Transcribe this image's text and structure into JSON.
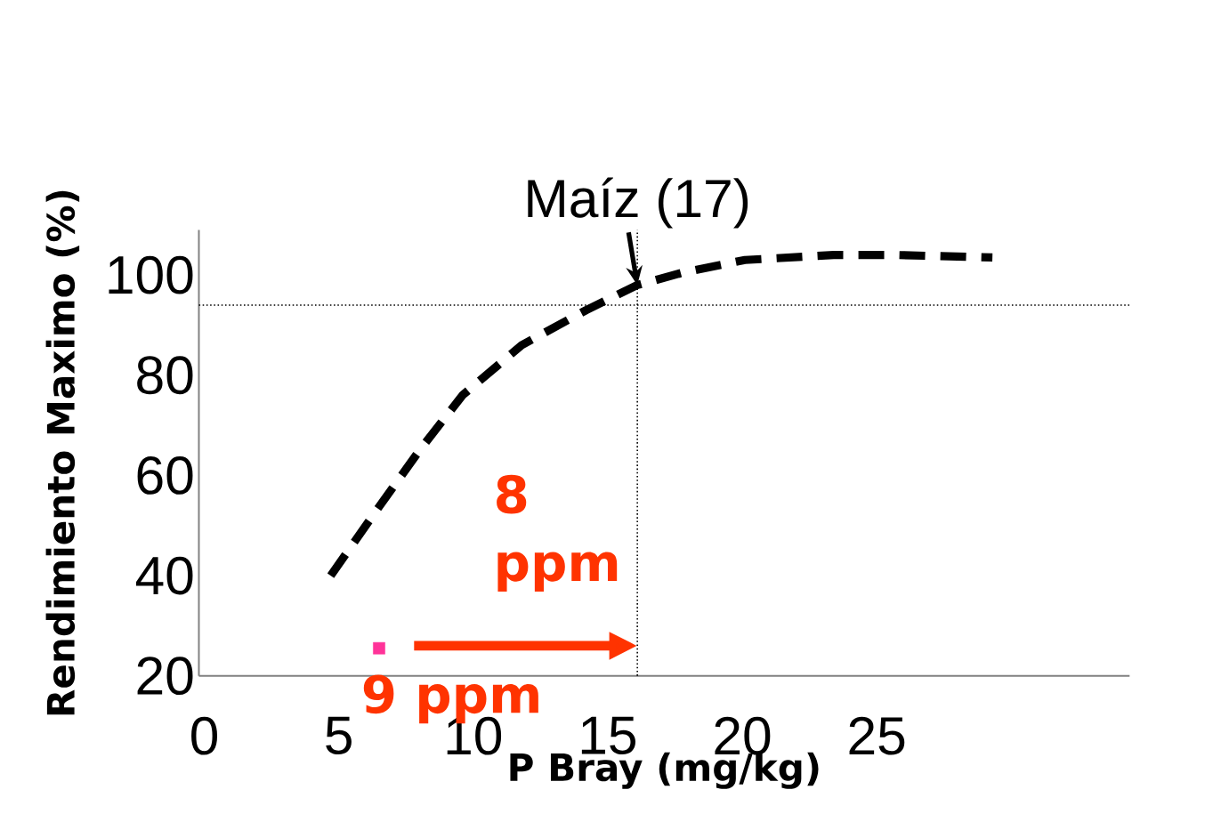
{
  "chart_data": {
    "type": "line",
    "xlabel": "P Bray (mg/kg)",
    "ylabel": "Rendimiento Maximo (%)",
    "xlim": [
      -0.2,
      34.4
    ],
    "ylim": [
      20,
      109
    ],
    "xticks": [
      0,
      5,
      10,
      15,
      20,
      25
    ],
    "yticks": [
      20,
      40,
      60,
      80,
      100
    ],
    "series": [
      {
        "color": "#000000",
        "line_style": "dashed",
        "marker": "none",
        "x": [
          4.7,
          6.4,
          8.0,
          9.6,
          11.8,
          14.2,
          16.1,
          17.8,
          20.1,
          23.4,
          25.7,
          29.3
        ],
        "values": [
          40,
          53,
          65,
          76,
          86,
          93,
          98,
          100.5,
          103,
          104,
          104,
          103.5
        ]
      },
      {
        "type": "scatter",
        "color": "#ff3399",
        "marker": "square",
        "x": [
          6.5
        ],
        "values": [
          25.5
        ]
      }
    ],
    "ref_lines": [
      {
        "axis": "y",
        "value": 94,
        "color": "#000000",
        "line_style": "dotted"
      },
      {
        "axis": "x",
        "value": 16.1,
        "color": "#000000",
        "line_style": "dotted"
      }
    ],
    "annotations": [
      {
        "text": "Maíz (17)",
        "x": 16.1,
        "y": 98
      },
      "8 ppm",
      "9 ppm"
    ]
  }
}
